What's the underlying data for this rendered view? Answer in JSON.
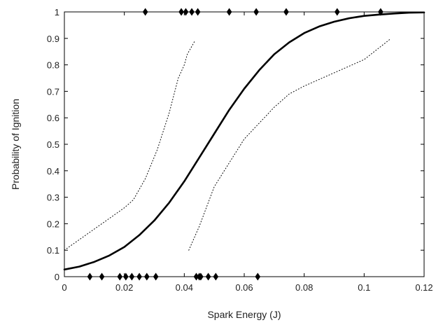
{
  "chart_data": {
    "type": "line",
    "title": "",
    "xlabel": "Spark Energy (J)",
    "ylabel": "Probability of Ignition",
    "xlim": [
      0,
      0.12
    ],
    "ylim": [
      0,
      1
    ],
    "x_ticks": [
      0,
      0.02,
      0.04,
      0.06,
      0.08,
      0.1,
      0.12
    ],
    "x_tick_labels": [
      "0",
      "0.02",
      "0.04",
      "0.06",
      "0.08",
      "0.1",
      "0.12"
    ],
    "y_ticks": [
      0,
      0.1,
      0.2,
      0.3,
      0.4,
      0.5,
      0.6,
      0.7,
      0.8,
      0.9,
      1
    ],
    "y_tick_labels": [
      "0",
      "0.1",
      "0.2",
      "0.3",
      "0.4",
      "0.5",
      "0.6",
      "0.7",
      "0.8",
      "0.9",
      "1"
    ],
    "grid": false,
    "series": [
      {
        "style": "solid-thick",
        "color": "#000000",
        "x": [
          0,
          0.005,
          0.01,
          0.015,
          0.02,
          0.025,
          0.03,
          0.035,
          0.04,
          0.045,
          0.05,
          0.055,
          0.06,
          0.065,
          0.07,
          0.075,
          0.08,
          0.085,
          0.09,
          0.095,
          0.1,
          0.105,
          0.11,
          0.115,
          0.12
        ],
        "y": [
          0.027,
          0.038,
          0.056,
          0.08,
          0.112,
          0.157,
          0.212,
          0.28,
          0.36,
          0.45,
          0.54,
          0.63,
          0.71,
          0.78,
          0.84,
          0.885,
          0.92,
          0.945,
          0.963,
          0.976,
          0.985,
          0.99,
          0.994,
          0.997,
          0.998
        ]
      },
      {
        "style": "dotted",
        "color": "#000000",
        "x": [
          0,
          0.005,
          0.01,
          0.015,
          0.02,
          0.023,
          0.027,
          0.031,
          0.035,
          0.038,
          0.04,
          0.041,
          0.0435
        ],
        "y": [
          0.1,
          0.14,
          0.18,
          0.22,
          0.26,
          0.29,
          0.37,
          0.48,
          0.62,
          0.75,
          0.8,
          0.84,
          0.89
        ]
      },
      {
        "style": "dotted",
        "color": "#000000",
        "x": [
          0.0415,
          0.045,
          0.05,
          0.055,
          0.06,
          0.065,
          0.07,
          0.075,
          0.08,
          0.09,
          0.1,
          0.109
        ],
        "y": [
          0.1,
          0.19,
          0.34,
          0.43,
          0.52,
          0.58,
          0.64,
          0.69,
          0.72,
          0.77,
          0.82,
          0.9
        ]
      }
    ],
    "observations": {
      "marker": "diamond",
      "color": "#000000",
      "ignited": [
        0.027,
        0.039,
        0.0405,
        0.0425,
        0.0445,
        0.055,
        0.064,
        0.074,
        0.091,
        0.1055
      ],
      "not_ignited": [
        0.0085,
        0.0125,
        0.0185,
        0.0205,
        0.0225,
        0.025,
        0.0275,
        0.0305,
        0.044,
        0.045,
        0.0455,
        0.048,
        0.0505,
        0.0645
      ]
    }
  }
}
